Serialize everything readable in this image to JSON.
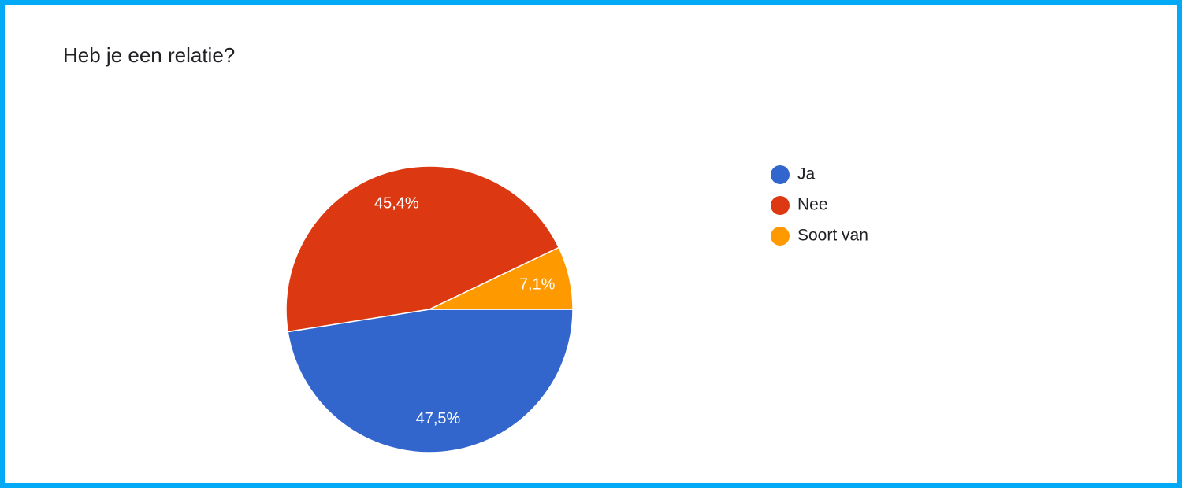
{
  "chart_data": {
    "type": "pie",
    "title": "Heb je een relatie?",
    "categories": [
      "Ja",
      "Nee",
      "Soort van"
    ],
    "values": [
      47.5,
      45.4,
      7.1
    ],
    "value_labels": [
      "47,5%",
      "45,4%",
      "7,1%"
    ],
    "colors": [
      "#3366cc",
      "#dc3912",
      "#ff9900"
    ],
    "legend": "right"
  }
}
